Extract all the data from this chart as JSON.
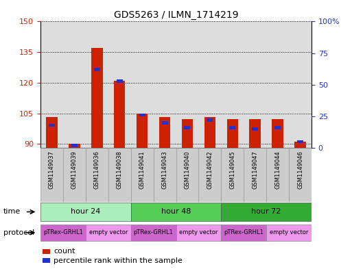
{
  "title": "GDS5263 / ILMN_1714219",
  "samples": [
    "GSM1149037",
    "GSM1149039",
    "GSM1149036",
    "GSM1149038",
    "GSM1149041",
    "GSM1149043",
    "GSM1149040",
    "GSM1149042",
    "GSM1149045",
    "GSM1149047",
    "GSM1149044",
    "GSM1149046"
  ],
  "count_values": [
    103,
    90,
    137,
    121,
    105,
    103,
    102,
    103,
    102,
    102,
    102,
    91
  ],
  "percentile_values": [
    18,
    2,
    62,
    53,
    26,
    20,
    16,
    22,
    16,
    15,
    16,
    5
  ],
  "ylim_left": [
    88,
    150
  ],
  "ylim_right": [
    0,
    100
  ],
  "yticks_left": [
    90,
    105,
    120,
    135,
    150
  ],
  "yticks_right": [
    0,
    25,
    50,
    75,
    100
  ],
  "red_color": "#cc2200",
  "blue_color": "#2233cc",
  "bg_color": "#ffffff",
  "plot_bg": "#dddddd",
  "time_colors": [
    "#aaeebb",
    "#55cc55",
    "#33aa33"
  ],
  "time_groups": [
    {
      "label": "hour 24",
      "start": 0,
      "end": 3
    },
    {
      "label": "hour 48",
      "start": 4,
      "end": 7
    },
    {
      "label": "hour 72",
      "start": 8,
      "end": 11
    }
  ],
  "protocol_groups": [
    {
      "label": "pTRex-GRHL1",
      "start": 0,
      "end": 1,
      "color": "#cc66cc"
    },
    {
      "label": "empty vector",
      "start": 2,
      "end": 3,
      "color": "#ee99ee"
    },
    {
      "label": "pTRex-GRHL1",
      "start": 4,
      "end": 5,
      "color": "#cc66cc"
    },
    {
      "label": "empty vector",
      "start": 6,
      "end": 7,
      "color": "#ee99ee"
    },
    {
      "label": "pTRex-GRHL1",
      "start": 8,
      "end": 9,
      "color": "#cc66cc"
    },
    {
      "label": "empty vector",
      "start": 10,
      "end": 11,
      "color": "#ee99ee"
    }
  ],
  "time_label": "time",
  "protocol_label": "protocol"
}
